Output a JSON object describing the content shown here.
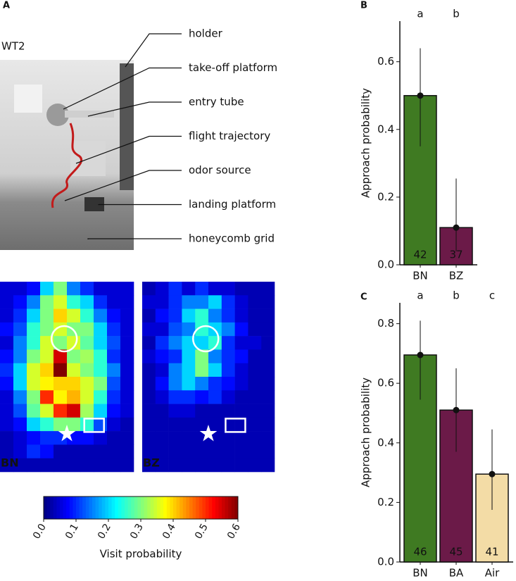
{
  "panel_labels": [
    "A",
    "B",
    "C"
  ],
  "photo": {
    "label": "WT2",
    "annotations": [
      "holder",
      "take-off platform",
      "entry tube",
      "flight trajectory",
      "odor source",
      "landing platform",
      "honeycomb grid"
    ]
  },
  "chart_data": [
    {
      "type": "heatmap",
      "label": "BN",
      "color": "#5a9e2f",
      "values": [
        [
          0.05,
          0.05,
          0.08,
          0.2,
          0.3,
          0.15,
          0.1,
          0.05,
          0.05,
          0.05
        ],
        [
          0.05,
          0.08,
          0.15,
          0.3,
          0.35,
          0.25,
          0.2,
          0.1,
          0.05,
          0.05
        ],
        [
          0.05,
          0.1,
          0.2,
          0.3,
          0.4,
          0.35,
          0.25,
          0.15,
          0.08,
          0.05
        ],
        [
          0.08,
          0.12,
          0.25,
          0.3,
          0.35,
          0.3,
          0.3,
          0.2,
          0.1,
          0.05
        ],
        [
          0.05,
          0.15,
          0.25,
          0.35,
          0.3,
          0.35,
          0.28,
          0.2,
          0.12,
          0.05
        ],
        [
          0.08,
          0.15,
          0.3,
          0.35,
          0.55,
          0.3,
          0.32,
          0.25,
          0.1,
          0.05
        ],
        [
          0.1,
          0.2,
          0.35,
          0.4,
          0.6,
          0.35,
          0.3,
          0.25,
          0.15,
          0.05
        ],
        [
          0.08,
          0.2,
          0.35,
          0.38,
          0.4,
          0.4,
          0.35,
          0.3,
          0.12,
          0.05
        ],
        [
          0.05,
          0.15,
          0.3,
          0.5,
          0.38,
          0.42,
          0.35,
          0.25,
          0.1,
          0.05
        ],
        [
          0.05,
          0.12,
          0.28,
          0.35,
          0.5,
          0.55,
          0.32,
          0.2,
          0.08,
          0.05
        ],
        [
          0.05,
          0.08,
          0.2,
          0.25,
          0.3,
          0.3,
          0.25,
          0.12,
          0.05,
          0.03
        ],
        [
          0.03,
          0.05,
          0.08,
          0.1,
          0.1,
          0.08,
          0.08,
          0.05,
          0.03,
          0.03
        ],
        [
          0.03,
          0.05,
          0.1,
          0.08,
          0.03,
          0.03,
          0.03,
          0.03,
          0.03,
          0.03
        ],
        [
          0.03,
          0.03,
          0.03,
          0.03,
          0.03,
          0.03,
          0.03,
          0.03,
          0.03,
          0.03
        ]
      ]
    },
    {
      "type": "heatmap",
      "label": "BZ",
      "color": "#b03a5a",
      "values": [
        [
          0.03,
          0.05,
          0.1,
          0.05,
          0.1,
          0.05,
          0.05,
          0.03,
          0.03,
          0.03
        ],
        [
          0.05,
          0.05,
          0.1,
          0.15,
          0.15,
          0.2,
          0.1,
          0.05,
          0.03,
          0.03
        ],
        [
          0.03,
          0.08,
          0.1,
          0.2,
          0.25,
          0.15,
          0.1,
          0.05,
          0.03,
          0.03
        ],
        [
          0.05,
          0.05,
          0.12,
          0.15,
          0.25,
          0.2,
          0.15,
          0.08,
          0.03,
          0.03
        ],
        [
          0.03,
          0.1,
          0.15,
          0.2,
          0.2,
          0.25,
          0.1,
          0.05,
          0.05,
          0.03
        ],
        [
          0.05,
          0.08,
          0.1,
          0.2,
          0.3,
          0.15,
          0.1,
          0.08,
          0.03,
          0.03
        ],
        [
          0.03,
          0.05,
          0.15,
          0.2,
          0.3,
          0.2,
          0.1,
          0.05,
          0.03,
          0.03
        ],
        [
          0.03,
          0.08,
          0.15,
          0.2,
          0.15,
          0.1,
          0.08,
          0.05,
          0.03,
          0.03
        ],
        [
          0.03,
          0.05,
          0.1,
          0.1,
          0.08,
          0.1,
          0.05,
          0.03,
          0.03,
          0.03
        ],
        [
          0.03,
          0.03,
          0.05,
          0.05,
          0.03,
          0.03,
          0.03,
          0.03,
          0.03,
          0.03
        ],
        [
          0.03,
          0.03,
          0.03,
          0.03,
          0.03,
          0.03,
          0.03,
          0.03,
          0.03,
          0.03
        ],
        [
          0.03,
          0.03,
          0.03,
          0.03,
          0.03,
          0.03,
          0.03,
          0.03,
          0.03,
          0.03
        ],
        [
          0.03,
          0.03,
          0.03,
          0.03,
          0.03,
          0.03,
          0.03,
          0.03,
          0.03,
          0.03
        ],
        [
          0.03,
          0.03,
          0.03,
          0.03,
          0.03,
          0.03,
          0.03,
          0.03,
          0.03,
          0.03
        ]
      ]
    },
    {
      "type": "colorbar",
      "title": "Visit probability",
      "lim": [
        0,
        0.6
      ],
      "ticks": [
        {
          "value": 0,
          "label": "0.0"
        },
        0.1,
        0.2,
        0.3,
        0.4,
        0.5,
        0.6
      ]
    },
    {
      "type": "bar",
      "ylabel": "Approach probability",
      "categories": [
        "BN",
        "BZ"
      ],
      "values": [
        0.5,
        0.11
      ],
      "lower": [
        0.35,
        0.04
      ],
      "upper": [
        0.64,
        0.255
      ],
      "colors": [
        "#3f7a22",
        "#6b1a48"
      ],
      "letters": [
        "a",
        "b"
      ],
      "n": [
        42,
        37
      ],
      "ylim": [
        0,
        0.72
      ],
      "yticks": [
        {
          "value": 0,
          "label": "0.0"
        },
        0.2,
        0.4,
        0.6
      ]
    },
    {
      "type": "bar",
      "ylabel": "Approach probability",
      "categories": [
        "BN",
        "BA",
        "Air"
      ],
      "values": [
        0.695,
        0.51,
        0.295
      ],
      "lower": [
        0.545,
        0.37,
        0.175
      ],
      "upper": [
        0.81,
        0.65,
        0.445
      ],
      "colors": [
        "#3f7a22",
        "#6b1a48",
        "#f3dca6"
      ],
      "letters": [
        "a",
        "b",
        "c"
      ],
      "n": [
        46,
        45,
        41
      ],
      "ylim": [
        0,
        0.87
      ],
      "yticks": [
        {
          "value": 0,
          "label": "0.0"
        },
        0.2,
        0.4,
        0.6,
        0.8
      ]
    }
  ]
}
